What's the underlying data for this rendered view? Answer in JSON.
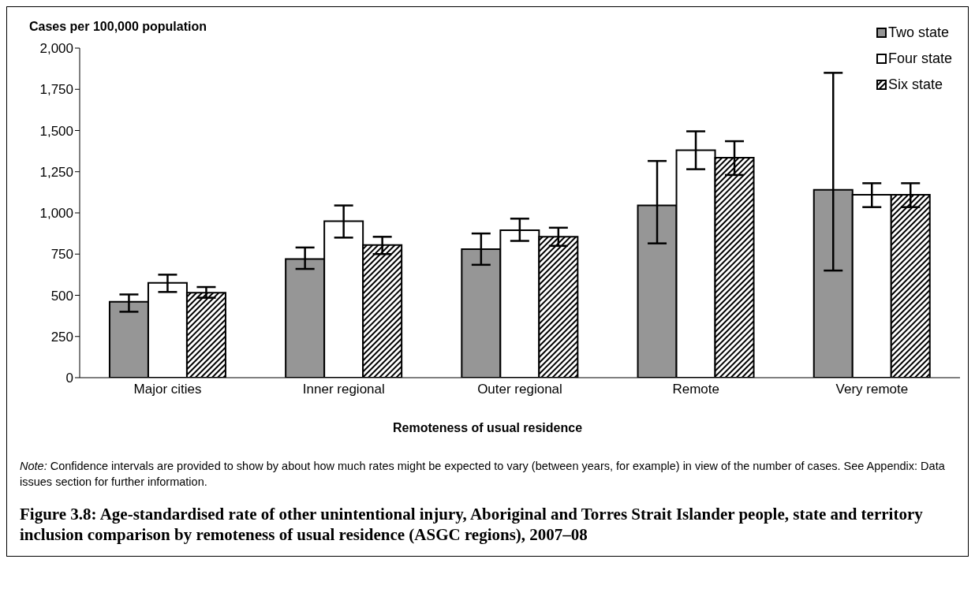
{
  "chart_data": {
    "type": "bar",
    "title": "Figure 3.8: Age-standardised rate of other unintentional injury, Aboriginal and Torres Strait Islander people, state and territory inclusion comparison by remoteness of usual residence (ASGC regions), 2007–08",
    "xlabel": "Remoteness of usual residence",
    "ylabel": "Cases per 100,000 population",
    "annotations": [
      "Note: Confidence intervals are provided to show by about how much rates might be expected to vary (between years, for example) in view of the number of cases. See Appendix: Data issues section for further information."
    ],
    "categories": [
      "Major cities",
      "Inner regional",
      "Outer regional",
      "Remote",
      "Very remote"
    ],
    "series": [
      {
        "name": "Two state",
        "color": "#969696",
        "values": [
          460,
          720,
          780,
          1045,
          1140
        ],
        "errors": [
          [
            400,
            505
          ],
          [
            660,
            790
          ],
          [
            685,
            875
          ],
          [
            815,
            1315
          ],
          [
            650,
            1850
          ]
        ]
      },
      {
        "name": "Four state",
        "color": "#ffffff",
        "values": [
          575,
          950,
          895,
          1380,
          1110
        ],
        "errors": [
          [
            520,
            625
          ],
          [
            850,
            1045
          ],
          [
            830,
            965
          ],
          [
            1265,
            1495
          ],
          [
            1035,
            1180
          ]
        ]
      },
      {
        "name": "Six state",
        "color": "#000000",
        "values": [
          515,
          805,
          855,
          1335,
          1110
        ],
        "errors": [
          [
            485,
            550
          ],
          [
            750,
            855
          ],
          [
            800,
            910
          ],
          [
            1230,
            1435
          ],
          [
            1035,
            1180
          ]
        ]
      }
    ],
    "ylim": [
      0,
      2000
    ],
    "yticks": [
      {
        "value": 0,
        "label": "0"
      },
      {
        "value": 250,
        "label": "250"
      },
      {
        "value": 500,
        "label": "500"
      },
      {
        "value": 750,
        "label": "750"
      },
      {
        "value": 1000,
        "label": "1,000"
      },
      {
        "value": 1250,
        "label": "1,250"
      },
      {
        "value": 1500,
        "label": "1,500"
      },
      {
        "value": 1750,
        "label": "1,750"
      },
      {
        "value": 2000,
        "label": "2,000"
      }
    ],
    "grid": false,
    "legend": "top right"
  }
}
